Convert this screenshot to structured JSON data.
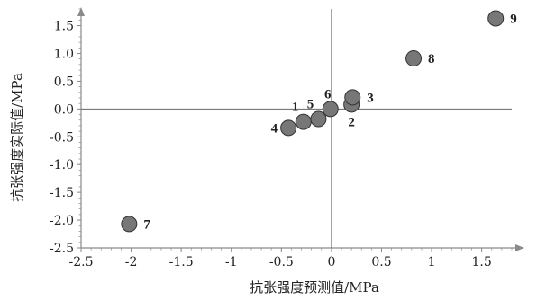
{
  "chart_data": {
    "type": "scatter",
    "title": "",
    "xlabel": "抗张强度预测值/MPa",
    "ylabel": "抗张强度实际值/MPa",
    "xlim": [
      -2.5,
      1.8
    ],
    "ylim": [
      -2.5,
      1.8
    ],
    "x_ticks": [
      -2.5,
      -2,
      -1.5,
      -1,
      -0.5,
      0,
      0.5,
      1,
      1.5
    ],
    "x_tick_labels": [
      "-2.5",
      "-2",
      "-1.5",
      "-1",
      "-0.5",
      "0",
      "0.5",
      "1",
      "1.5"
    ],
    "y_ticks": [
      -2.5,
      -2.0,
      -1.5,
      -1.0,
      -0.5,
      0.0,
      0.5,
      1.0,
      1.5
    ],
    "y_tick_labels": [
      "-2.5",
      "-2.0",
      "-1.5",
      "-1.0",
      "-0.5",
      "0.0",
      "0.5",
      "1.0",
      "1.5"
    ],
    "grid": false,
    "crosshair_at_origin": true,
    "marker_color": "#777777",
    "points": [
      {
        "label": "1",
        "x": -0.28,
        "y": -0.23,
        "label_pos": "top-left"
      },
      {
        "label": "2",
        "x": 0.2,
        "y": 0.08,
        "label_pos": "bottom"
      },
      {
        "label": "3",
        "x": 0.21,
        "y": 0.21,
        "label_pos": "right"
      },
      {
        "label": "4",
        "x": -0.43,
        "y": -0.34,
        "label_pos": "left"
      },
      {
        "label": "5",
        "x": -0.13,
        "y": -0.18,
        "label_pos": "top-left"
      },
      {
        "label": "6",
        "x": -0.01,
        "y": 0.0,
        "label_pos": "top"
      },
      {
        "label": "7",
        "x": -2.02,
        "y": -2.07,
        "label_pos": "right"
      },
      {
        "label": "8",
        "x": 0.82,
        "y": 0.91,
        "label_pos": "right"
      },
      {
        "label": "9",
        "x": 1.64,
        "y": 1.63,
        "label_pos": "right"
      }
    ]
  }
}
